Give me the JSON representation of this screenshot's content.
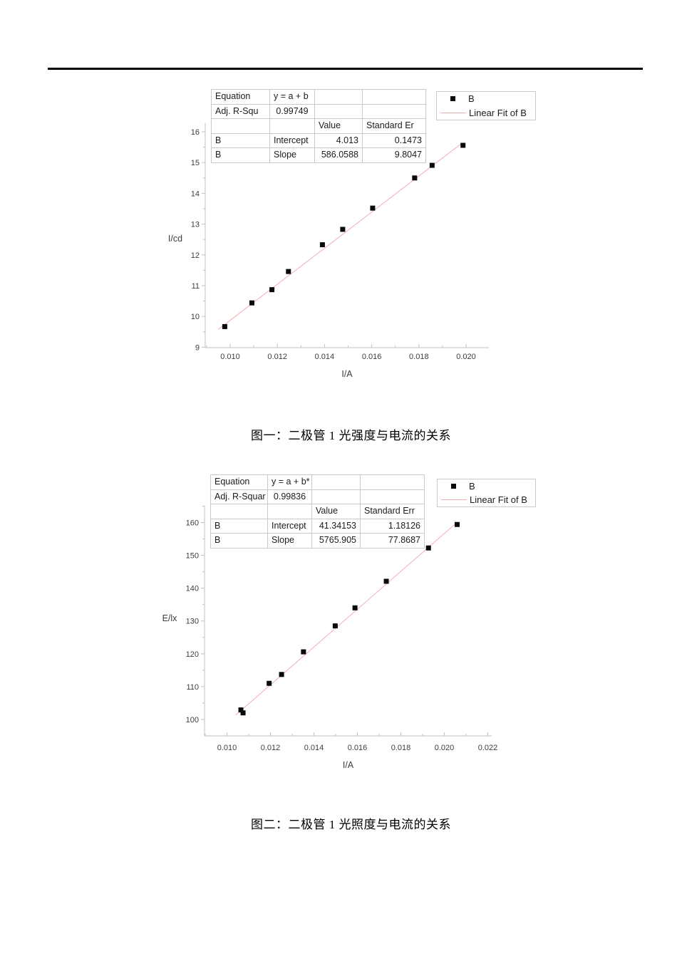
{
  "colors": {
    "fit_line": "#f2aeb2",
    "marker": "#0a0a0a",
    "axis": "#c2c2c2",
    "tick_text": "#3c3c3c",
    "table_border": "#c9c9c9"
  },
  "chart_data": [
    {
      "type": "scatter",
      "title": "图一：二极管 1 光强度与电流的关系",
      "xlabel": "I/A",
      "ylabel": "I/cd",
      "xlim": [
        0.008943,
        0.020967
      ],
      "ylim": [
        8.99,
        16.28
      ],
      "grid": false,
      "x_ticks": [
        {
          "v": 0.01,
          "label": "0.010"
        },
        {
          "v": 0.012,
          "label": "0.012"
        },
        {
          "v": 0.014,
          "label": "0.014"
        },
        {
          "v": 0.016,
          "label": "0.016"
        },
        {
          "v": 0.018,
          "label": "0.018"
        },
        {
          "v": 0.02,
          "label": "0.020"
        }
      ],
      "y_ticks": [
        {
          "v": 9,
          "label": "9"
        },
        {
          "v": 10,
          "label": "10"
        },
        {
          "v": 11,
          "label": "11"
        },
        {
          "v": 12,
          "label": "12"
        },
        {
          "v": 13,
          "label": "13"
        },
        {
          "v": 14,
          "label": "14"
        },
        {
          "v": 15,
          "label": "15"
        },
        {
          "v": 16,
          "label": "16"
        }
      ],
      "series": [
        {
          "name": "B",
          "marker": "black-square",
          "points": [
            [
              0.00977,
              9.67
            ],
            [
              0.01092,
              10.44
            ],
            [
              0.01177,
              10.87
            ],
            [
              0.01247,
              11.46
            ],
            [
              0.01391,
              12.33
            ],
            [
              0.01477,
              12.83
            ],
            [
              0.01604,
              13.52
            ],
            [
              0.01782,
              14.5
            ],
            [
              0.01856,
              14.91
            ],
            [
              0.01987,
              15.56
            ]
          ]
        }
      ],
      "fit": {
        "label": "Linear Fit of B",
        "intercept": 4.013,
        "slope": 586.0588,
        "x_range": [
          0.0095,
          0.0198
        ]
      },
      "legend": {
        "position": "top-right",
        "entries": [
          {
            "label": "B",
            "type": "marker"
          },
          {
            "label": "Linear Fit of B",
            "type": "line"
          }
        ]
      },
      "table": {
        "rows": [
          [
            "Equation",
            "y = a + b",
            "",
            ""
          ],
          [
            "Adj. R-Squ",
            "0.99749",
            "",
            ""
          ],
          [
            "",
            "",
            "Value",
            "Standard Er"
          ],
          [
            "B",
            "Intercept",
            "4.013",
            "0.1473"
          ],
          [
            "B",
            "Slope",
            "586.0588",
            "9.8047"
          ]
        ]
      }
    },
    {
      "type": "scatter",
      "title": "图二：二极管 1 光照度与电流的关系",
      "xlabel": "I/A",
      "ylabel": "E/lx",
      "xlim": [
        0.008967,
        0.02218
      ],
      "ylim": [
        95.1,
        165.1
      ],
      "grid": false,
      "x_ticks": [
        {
          "v": 0.01,
          "label": "0.010"
        },
        {
          "v": 0.012,
          "label": "0.012"
        },
        {
          "v": 0.014,
          "label": "0.014"
        },
        {
          "v": 0.016,
          "label": "0.016"
        },
        {
          "v": 0.018,
          "label": "0.018"
        },
        {
          "v": 0.02,
          "label": "0.020"
        },
        {
          "v": 0.022,
          "label": "0.022"
        }
      ],
      "y_ticks": [
        {
          "v": 100,
          "label": "100"
        },
        {
          "v": 110,
          "label": "110"
        },
        {
          "v": 120,
          "label": "120"
        },
        {
          "v": 130,
          "label": "130"
        },
        {
          "v": 140,
          "label": "140"
        },
        {
          "v": 150,
          "label": "150"
        },
        {
          "v": 160,
          "label": "160"
        }
      ],
      "series": [
        {
          "name": "B",
          "marker": "black-square",
          "points": [
            [
              0.01064,
              102.9
            ],
            [
              0.01074,
              102.0
            ],
            [
              0.01194,
              111.0
            ],
            [
              0.01251,
              113.7
            ],
            [
              0.01352,
              120.6
            ],
            [
              0.01498,
              128.5
            ],
            [
              0.01589,
              134.0
            ],
            [
              0.01733,
              142.1
            ],
            [
              0.01927,
              152.25
            ],
            [
              0.02059,
              159.4
            ]
          ]
        }
      ],
      "fit": {
        "label": "Linear Fit of B",
        "intercept": 41.34153,
        "slope": 5765.905,
        "x_range": [
          0.0104,
          0.0205
        ]
      },
      "legend": {
        "position": "top-right",
        "entries": [
          {
            "label": "B",
            "type": "marker"
          },
          {
            "label": "Linear Fit of B",
            "type": "line"
          }
        ]
      },
      "table": {
        "rows": [
          [
            "Equation",
            "y = a + b*",
            "",
            ""
          ],
          [
            "Adj. R-Squar",
            "0.99836",
            "",
            ""
          ],
          [
            "",
            "",
            "Value",
            "Standard Err"
          ],
          [
            "B",
            "Intercept",
            "41.34153",
            "1.18126"
          ],
          [
            "B",
            "Slope",
            "5765.905",
            "77.8687"
          ]
        ]
      }
    }
  ]
}
